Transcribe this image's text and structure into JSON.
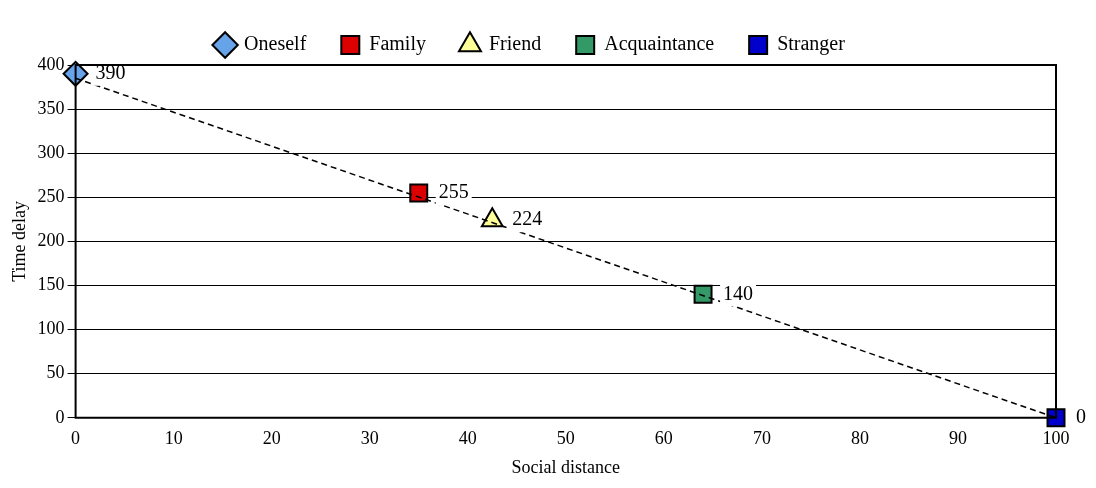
{
  "chart_data": {
    "type": "scatter",
    "xlabel": "Social distance",
    "ylabel": "Time delay",
    "xlim": [
      0,
      100
    ],
    "xticks": [
      0,
      10,
      20,
      30,
      40,
      50,
      60,
      70,
      80,
      90,
      100
    ],
    "ylim": [
      0,
      400
    ],
    "yticks": [
      0,
      50,
      100,
      150,
      200,
      250,
      300,
      350,
      400
    ],
    "grid": "y",
    "legend": "top",
    "series": [
      {
        "type": "line",
        "color": "#000000",
        "x": [
          0,
          100
        ],
        "values": [
          385,
          0
        ],
        "line_style": "dashed",
        "marker": "none"
      },
      {
        "name": "Oneself",
        "color": "#66a3e8",
        "x": [
          0
        ],
        "values": [
          390
        ],
        "value_labels": [
          "390"
        ],
        "marker": "diamond"
      },
      {
        "name": "Family",
        "color": "#dd0000",
        "x": [
          35
        ],
        "values": [
          255
        ],
        "value_labels": [
          "255"
        ],
        "marker": "square"
      },
      {
        "name": "Friend",
        "color": "#ffff99",
        "x": [
          42.5
        ],
        "values": [
          224
        ],
        "value_labels": [
          "224"
        ],
        "marker": "triangle"
      },
      {
        "name": "Acquaintance",
        "color": "#339966",
        "x": [
          64
        ],
        "values": [
          140
        ],
        "value_labels": [
          "140"
        ],
        "marker": "square"
      },
      {
        "name": "Stranger",
        "color": "#0000cc",
        "x": [
          100
        ],
        "values": [
          0
        ],
        "value_labels": [
          "0"
        ],
        "marker": "square"
      }
    ]
  }
}
